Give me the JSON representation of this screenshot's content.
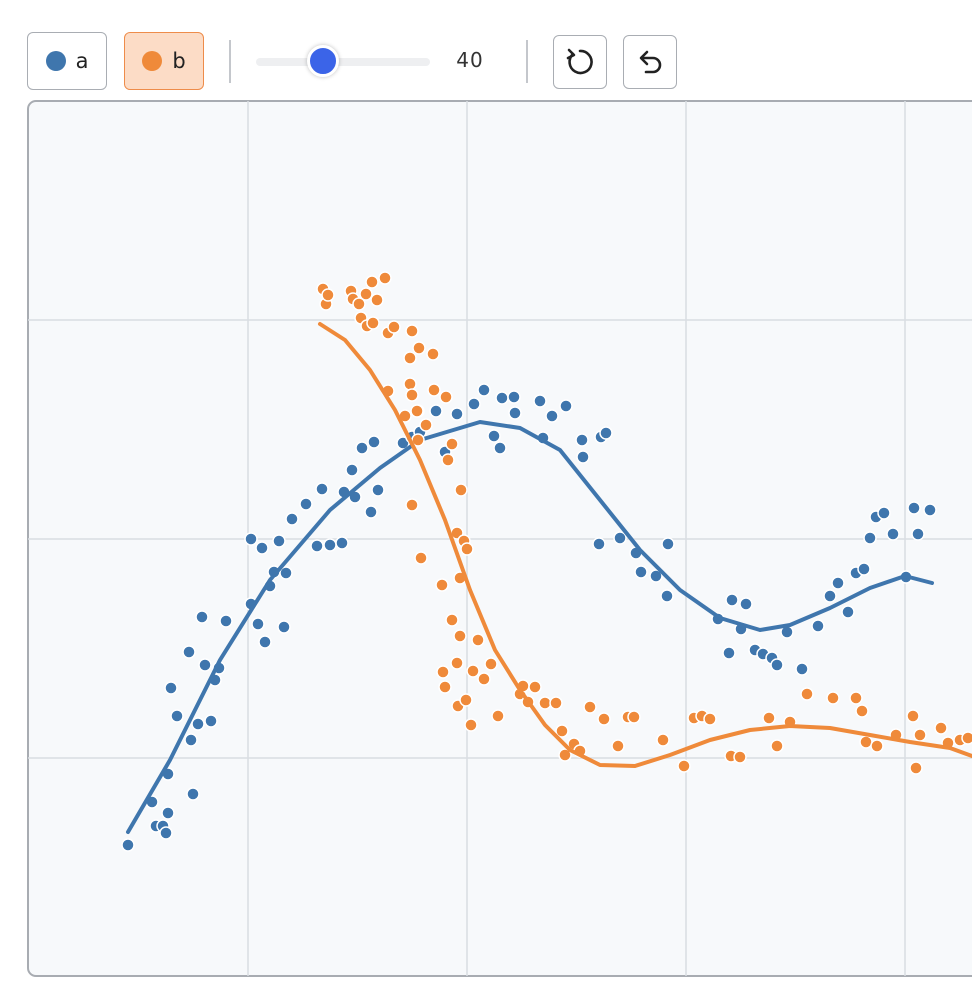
{
  "chart_data": {
    "type": "scatter",
    "xlim": [
      0,
      944
    ],
    "ylim": [
      0,
      875
    ],
    "xticks": [
      220,
      439,
      658,
      877
    ],
    "yticks": [
      218,
      437,
      656
    ],
    "grid": true,
    "slider_value": 40,
    "series": [
      {
        "name": "a",
        "color": "#3f76ad",
        "x": [
          100,
          124,
          128,
          135,
          138,
          140,
          140,
          143,
          149,
          161,
          163,
          165,
          170,
          174,
          177,
          183,
          187,
          191,
          198,
          223,
          223,
          230,
          234,
          237,
          242,
          246,
          251,
          256,
          258,
          264,
          278,
          289,
          294,
          302,
          314,
          316,
          324,
          327,
          334,
          343,
          346,
          350,
          375,
          384,
          390,
          392,
          408,
          417,
          429,
          446,
          456,
          466,
          472,
          474,
          486,
          487,
          512,
          515,
          524,
          538,
          554,
          555,
          571,
          573,
          578,
          592,
          608,
          613,
          628,
          640,
          639,
          690,
          701,
          704,
          713,
          718,
          727,
          735,
          744,
          749,
          759,
          774,
          790,
          802,
          810,
          820,
          828,
          836,
          842,
          848,
          856,
          865,
          878,
          886,
          890,
          902
        ],
        "y": [
          131,
          174,
          150,
          150,
          143,
          163,
          202,
          288,
          260,
          324,
          236,
          182,
          252,
          359,
          311,
          255,
          296,
          308,
          355,
          437,
          372,
          352,
          428,
          334,
          390,
          404,
          435,
          349,
          403,
          457,
          472,
          430,
          487,
          431,
          433,
          484,
          506,
          479,
          528,
          464,
          534,
          486,
          533,
          539,
          565,
          544,
          565,
          524,
          562,
          572,
          586,
          540,
          528,
          578,
          579,
          563,
          575,
          538,
          560,
          570,
          536,
          519,
          432,
          539,
          543,
          438,
          423,
          404,
          400,
          432,
          380,
          357,
          323,
          376,
          347,
          372,
          326,
          322,
          318,
          311,
          344,
          307,
          350,
          380,
          393,
          364,
          403,
          407,
          438,
          459,
          463,
          442,
          399,
          468,
          442,
          466
        ],
        "fit": {
          "x": [
            100,
            142,
            192,
            242,
            302,
            352,
            392,
            452,
            492,
            532,
            572,
            612,
            652,
            692,
            732,
            762,
            802,
            842,
            877,
            904
          ],
          "y": [
            144,
            216,
            316,
            396,
            466,
            508,
            536,
            554,
            548,
            526,
            476,
            426,
            386,
            358,
            346,
            351,
            368,
            388,
            400,
            393
          ]
        }
      },
      {
        "name": "b",
        "color": "#ef8a3a",
        "x": [
          295,
          298,
          300,
          323,
          325,
          331,
          333,
          338,
          344,
          349,
          357,
          339,
          345,
          360,
          366,
          384,
          382,
          391,
          405,
          382,
          360,
          384,
          377,
          389,
          398,
          406,
          418,
          390,
          424,
          420,
          433,
          384,
          393,
          429,
          436,
          439,
          414,
          432,
          424,
          432,
          415,
          417,
          429,
          445,
          430,
          438,
          443,
          450,
          456,
          463,
          470,
          492,
          495,
          500,
          507,
          517,
          528,
          534,
          537,
          546,
          552,
          562,
          576,
          590,
          600,
          606,
          635,
          656,
          666,
          674,
          682,
          703,
          712,
          741,
          749,
          762,
          779,
          805,
          828,
          834,
          838,
          849,
          868,
          885,
          888,
          892,
          913,
          920,
          932,
          940
        ],
        "y": [
          687,
          672,
          681,
          685,
          677,
          672,
          658,
          682,
          694,
          676,
          698,
          650,
          653,
          643,
          649,
          645,
          618,
          628,
          622,
          592,
          585,
          581,
          560,
          565,
          551,
          586,
          579,
          536,
          532,
          516,
          486,
          471,
          418,
          443,
          435,
          427,
          391,
          398,
          356,
          340,
          304,
          289,
          313,
          305,
          270,
          276,
          251,
          336,
          297,
          312,
          260,
          282,
          290,
          274,
          289,
          273,
          273,
          245,
          221,
          232,
          225,
          269,
          257,
          230,
          259,
          259,
          236,
          210,
          258,
          260,
          257,
          220,
          219,
          258,
          230,
          254,
          282,
          278,
          278,
          265,
          234,
          230,
          241,
          260,
          208,
          241,
          248,
          233,
          236,
          238
        ],
        "fit": {
          "x": [
            292,
            317,
            342,
            367,
            392,
            417,
            442,
            467,
            492,
            517,
            542,
            572,
            607,
            642,
            682,
            722,
            762,
            802,
            842,
            882,
            922,
            944
          ],
          "y": [
            652,
            636,
            606,
            566,
            516,
            456,
            386,
            326,
            286,
            251,
            226,
            211,
            210,
            221,
            236,
            246,
            250,
            248,
            241,
            234,
            228,
            220
          ]
        }
      }
    ]
  }
}
